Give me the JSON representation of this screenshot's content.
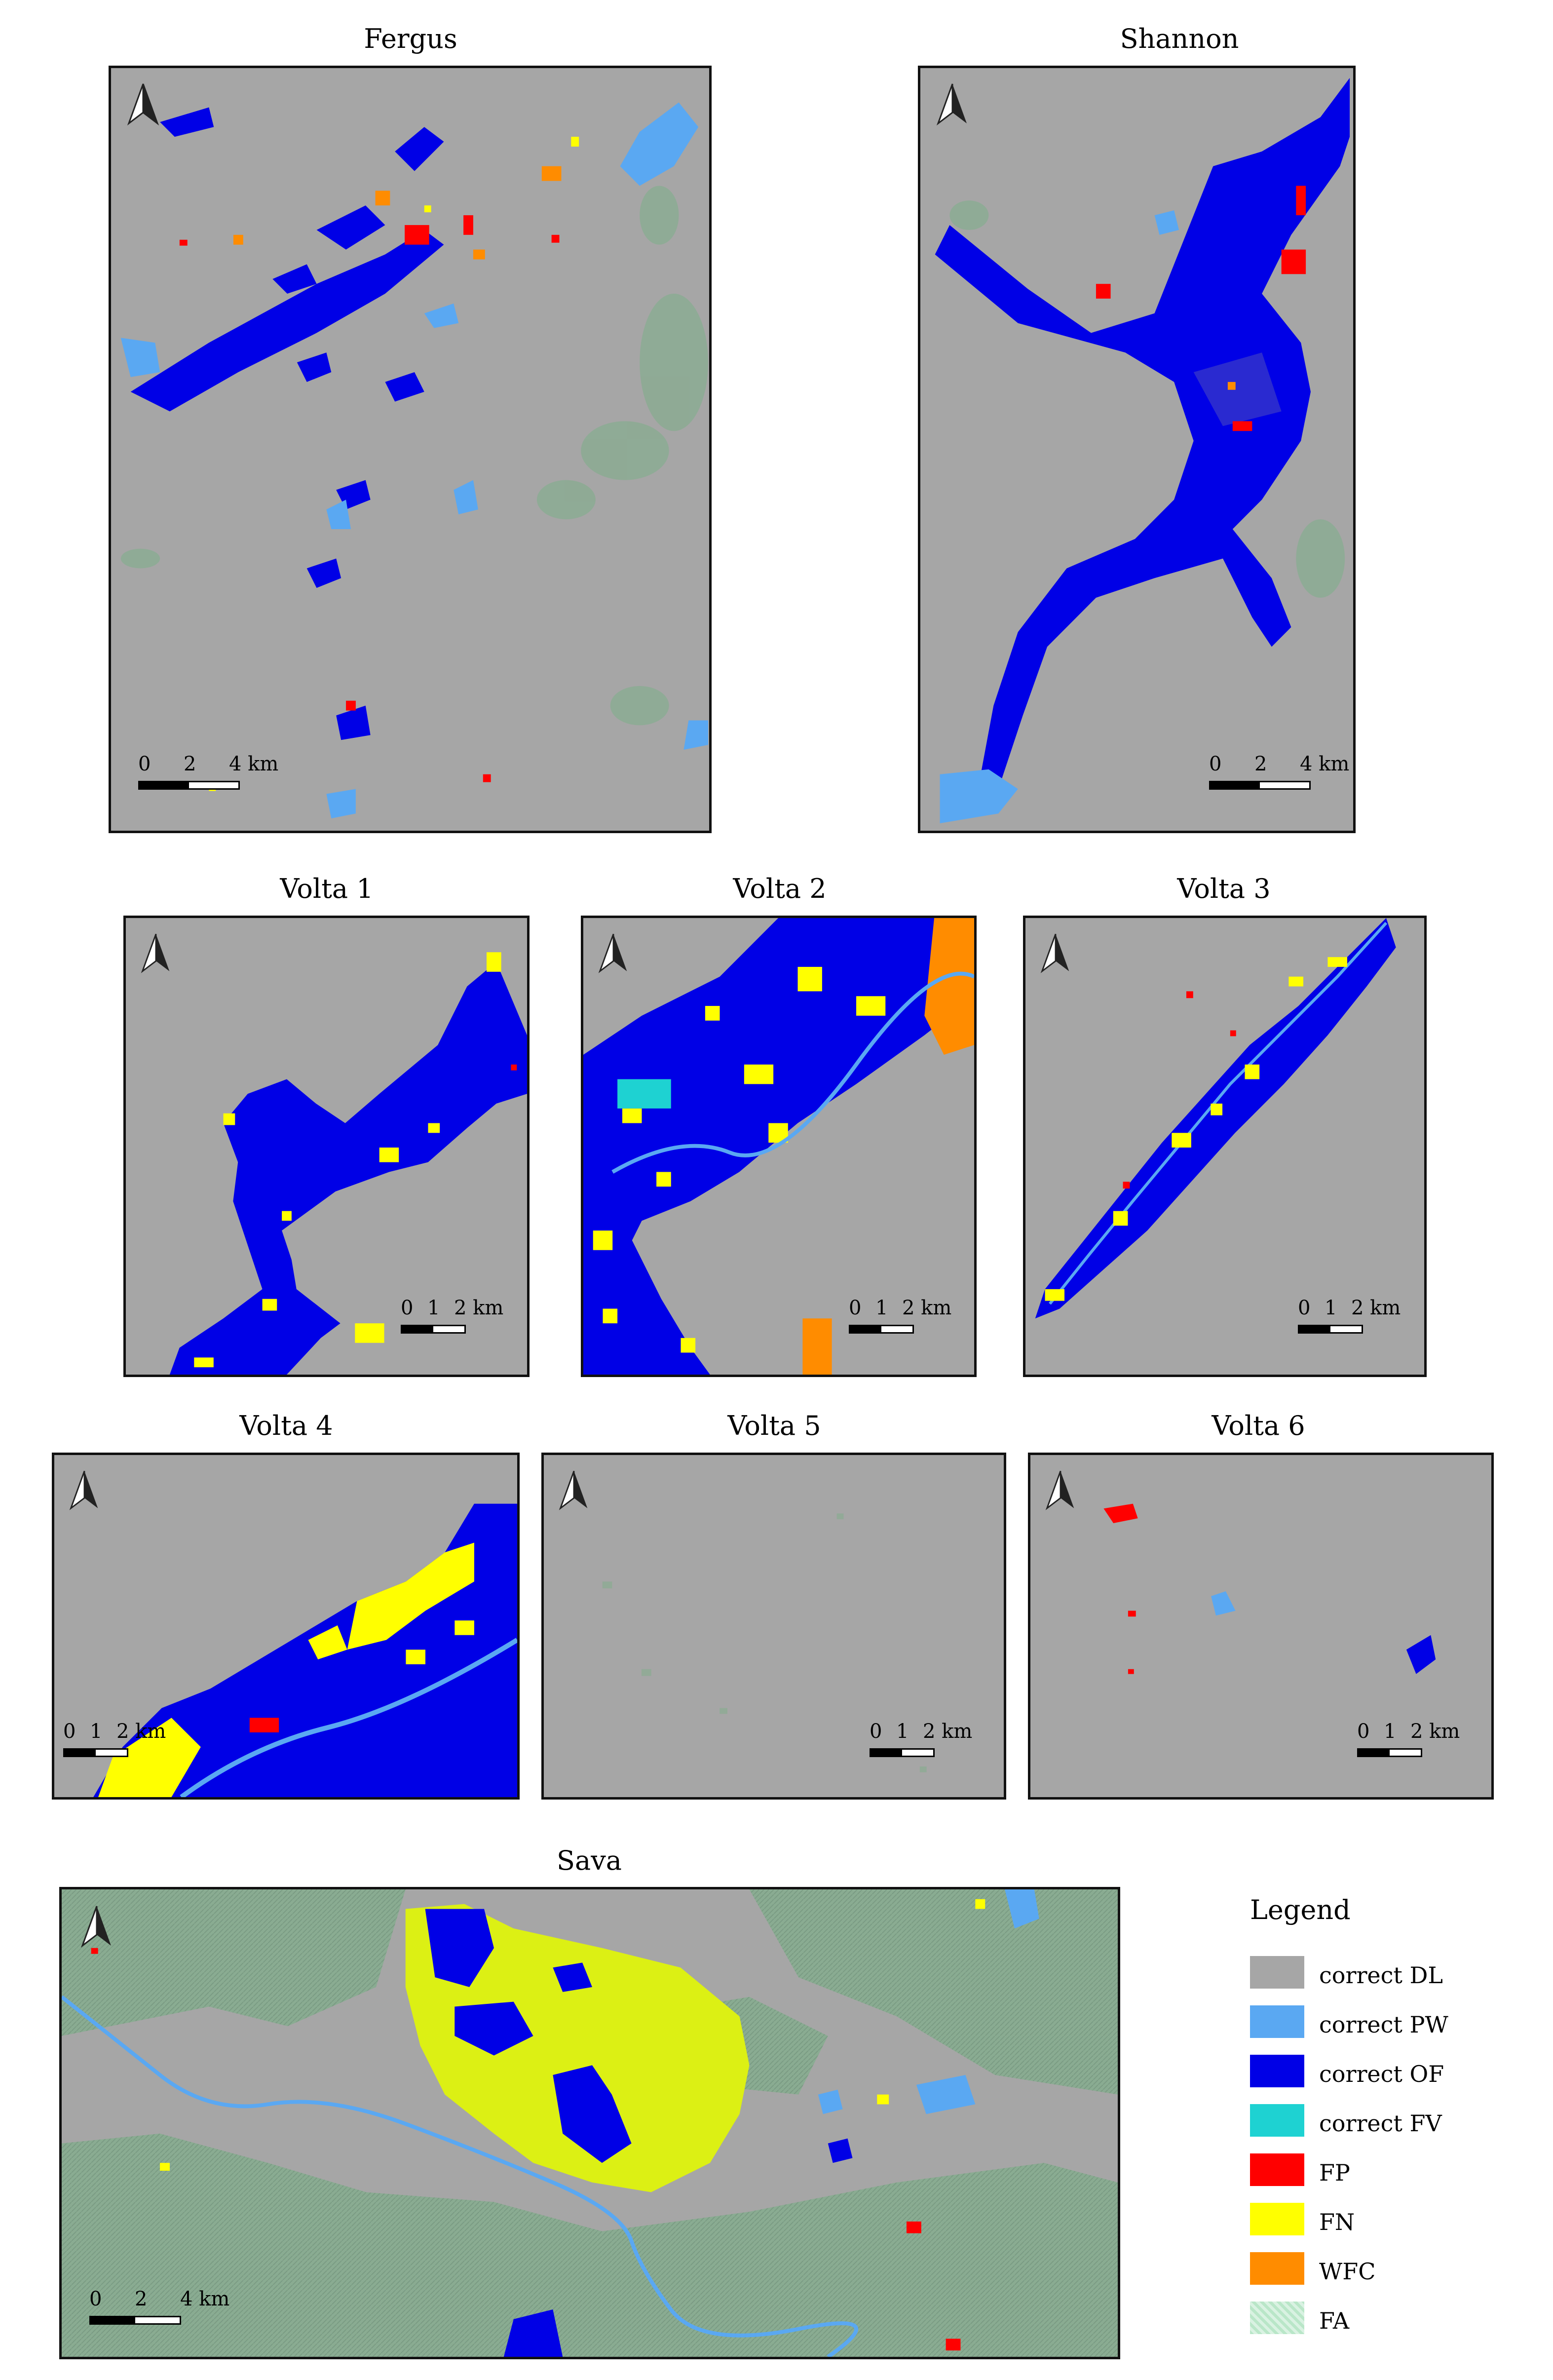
{
  "colors": {
    "correct_dl": "#a6a6a6",
    "correct_pw": "#5aa8f2",
    "correct_of": "#0000e6",
    "correct_fv": "#1ed2d2",
    "fp": "#ff0000",
    "fn": "#ffff00",
    "wfc": "#ff8c00",
    "fa": "#b9e6c8",
    "sava_fn": "#dcf014",
    "fa_dark": "#7aa58a"
  },
  "panels": {
    "fergus": {
      "title": "Fergus",
      "scale": [
        "0",
        "2",
        "4 km"
      ]
    },
    "shannon": {
      "title": "Shannon",
      "scale": [
        "0",
        "2",
        "4 km"
      ]
    },
    "volta1": {
      "title": "Volta 1",
      "scale": [
        "0",
        "1",
        "2 km"
      ]
    },
    "volta2": {
      "title": "Volta 2",
      "scale": [
        "0",
        "1",
        "2 km"
      ]
    },
    "volta3": {
      "title": "Volta 3",
      "scale": [
        "0",
        "1",
        "2 km"
      ]
    },
    "volta4": {
      "title": "Volta 4",
      "scale": [
        "0",
        "1",
        "2 km"
      ]
    },
    "volta5": {
      "title": "Volta 5",
      "scale": [
        "0",
        "1",
        "2 km"
      ]
    },
    "volta6": {
      "title": "Volta 6",
      "scale": [
        "0",
        "1",
        "2 km"
      ]
    },
    "sava": {
      "title": "Sava",
      "scale": [
        "0",
        "2",
        "4 km"
      ]
    }
  },
  "legend": {
    "title": "Legend",
    "items": [
      {
        "label": "correct DL",
        "color": "#a6a6a6",
        "icon": "swatch-gray"
      },
      {
        "label": "correct PW",
        "color": "#5aa8f2",
        "icon": "swatch-light-blue"
      },
      {
        "label": "correct OF",
        "color": "#0000e6",
        "icon": "swatch-blue"
      },
      {
        "label": "correct FV",
        "color": "#1ed2d2",
        "icon": "swatch-cyan"
      },
      {
        "label": "FP",
        "color": "#ff0000",
        "icon": "swatch-red"
      },
      {
        "label": "FN",
        "color": "#ffff00",
        "icon": "swatch-yellow"
      },
      {
        "label": "WFC",
        "color": "#ff8c00",
        "icon": "swatch-orange"
      },
      {
        "label": "FA",
        "color": "#b9e6c8",
        "icon": "swatch-green-hatched"
      }
    ]
  },
  "icons": {
    "north_arrow": "north-arrow-icon"
  }
}
